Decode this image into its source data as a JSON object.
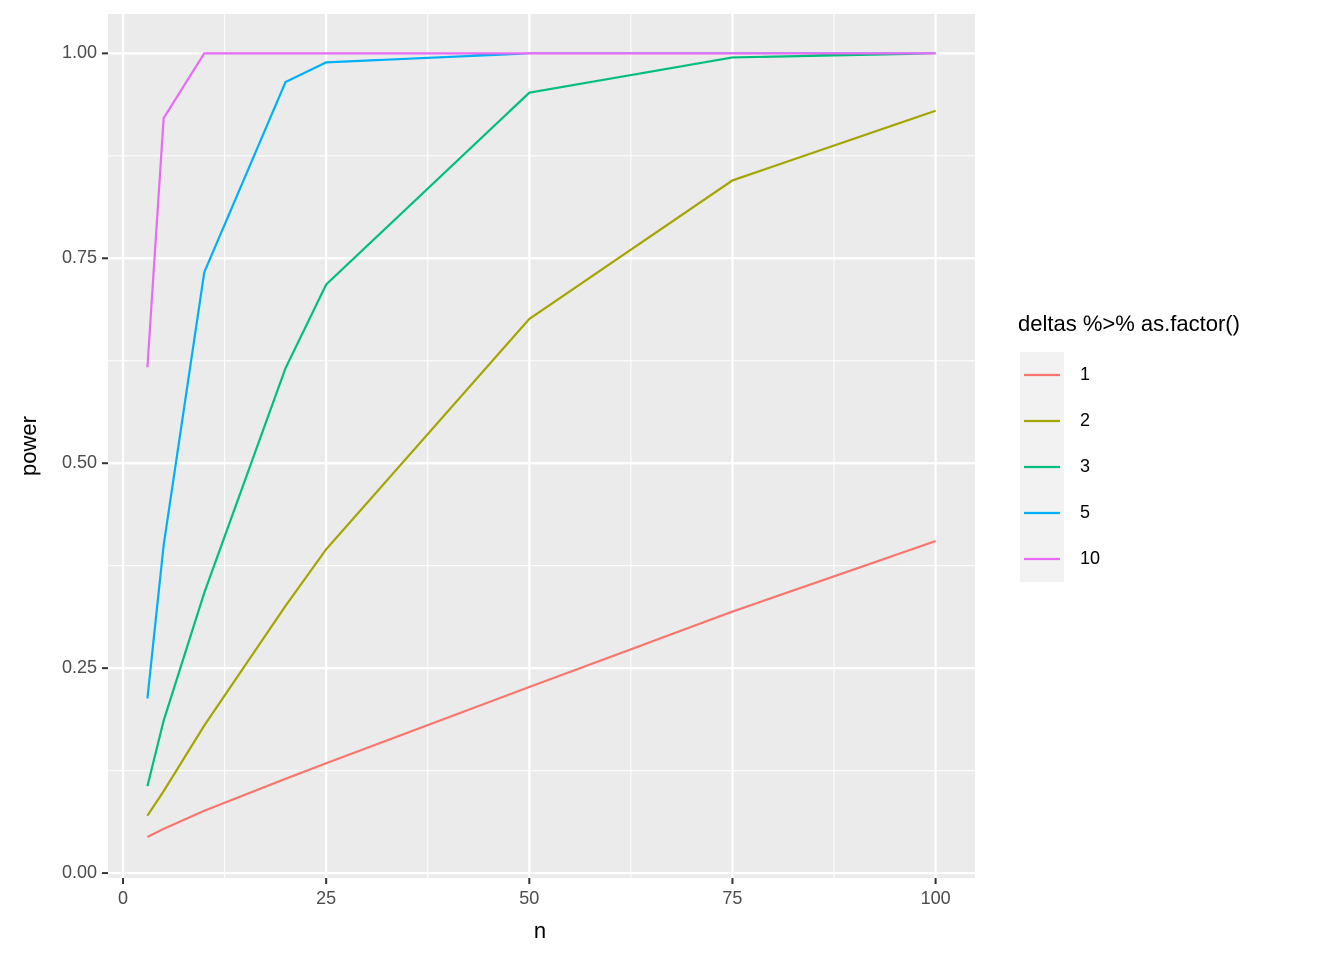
{
  "chart_data": {
    "type": "line",
    "x_label": "n",
    "y_label": "power",
    "legend_title": "deltas %>% as.factor()",
    "x": [
      3,
      5,
      10,
      20,
      25,
      50,
      75,
      100
    ],
    "series": [
      {
        "name": "1",
        "color": "#F8766D",
        "values": [
          0.044,
          0.054,
          0.076,
          0.115,
          0.134,
          0.227,
          0.319,
          0.405
        ]
      },
      {
        "name": "2",
        "color": "#A3A500",
        "values": [
          0.07,
          0.1,
          0.18,
          0.326,
          0.395,
          0.676,
          0.845,
          0.93
        ]
      },
      {
        "name": "3",
        "color": "#00BF7D",
        "values": [
          0.106,
          0.186,
          0.342,
          0.616,
          0.718,
          0.952,
          0.995,
          1.0
        ]
      },
      {
        "name": "5",
        "color": "#00B0F6",
        "values": [
          0.213,
          0.4,
          0.733,
          0.965,
          0.989,
          1.0,
          1.0,
          1.0
        ]
      },
      {
        "name": "10",
        "color": "#E76BF3",
        "values": [
          0.617,
          0.921,
          1.0,
          1.0,
          1.0,
          1.0,
          1.0,
          1.0
        ]
      }
    ],
    "xlim": [
      -1.85,
      104.85
    ],
    "ylim": [
      -0.006,
      1.048
    ],
    "xticks": [
      0,
      25,
      50,
      75,
      100
    ],
    "yticks": [
      {
        "value": 0,
        "label": "0.00"
      },
      {
        "value": 0.25,
        "label": "0.25"
      },
      {
        "value": 0.5,
        "label": "0.50"
      },
      {
        "value": 0.75,
        "label": "0.75"
      },
      {
        "value": 1,
        "label": "1.00"
      }
    ],
    "grid": true,
    "minor_grid": true,
    "legend": "right"
  }
}
